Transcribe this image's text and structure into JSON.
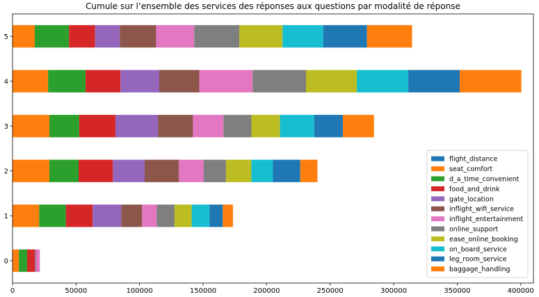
{
  "chart_data": {
    "type": "bar",
    "orientation": "horizontal",
    "stacked": true,
    "title": "Cumule sur l’ensemble des services des réponses aux questions par modalité de réponse",
    "xlabel": "",
    "ylabel": "",
    "xlim": [
      0,
      410000
    ],
    "xticks": [
      0,
      50000,
      100000,
      150000,
      200000,
      250000,
      300000,
      350000,
      400000
    ],
    "xtick_labels": [
      "0",
      "50000",
      "100000",
      "150000",
      "200000",
      "250000",
      "300000",
      "350000",
      "400000"
    ],
    "categories": [
      "0",
      "1",
      "2",
      "3",
      "4",
      "5"
    ],
    "legend_position": "lower right",
    "grid": false,
    "series": [
      {
        "name": "flight_distance",
        "color": "#1f77b4",
        "values": [
          0,
          0,
          0,
          0,
          0,
          0
        ]
      },
      {
        "name": "seat_comfort",
        "color": "#ff7f0e",
        "values": [
          5000,
          21000,
          29000,
          29000,
          28000,
          17500
        ]
      },
      {
        "name": "d_a_time_convenient",
        "color": "#2ca02c",
        "values": [
          6500,
          21000,
          23000,
          23500,
          29500,
          27000
        ]
      },
      {
        "name": "food_and_drink",
        "color": "#d62728",
        "values": [
          6000,
          21000,
          27000,
          28500,
          27500,
          20500
        ]
      },
      {
        "name": "gate_location",
        "color": "#9467bd",
        "values": [
          500,
          22500,
          25000,
          33500,
          30500,
          19500
        ]
      },
      {
        "name": "inflight_wifi_service",
        "color": "#8c564b",
        "values": [
          500,
          16500,
          27000,
          27500,
          31500,
          28500
        ]
      },
      {
        "name": "inflight_entertainment",
        "color": "#e377c2",
        "values": [
          3000,
          11500,
          19500,
          24000,
          42000,
          30000
        ]
      },
      {
        "name": "online_support",
        "color": "#7f7f7f",
        "values": [
          0,
          14000,
          17500,
          22000,
          42000,
          35500
        ]
      },
      {
        "name": "ease_online_booking",
        "color": "#bcbd22",
        "values": [
          0,
          13500,
          20000,
          22500,
          40000,
          34000
        ]
      },
      {
        "name": "on_board_service",
        "color": "#17becf",
        "values": [
          0,
          14000,
          17000,
          27000,
          40500,
          32000
        ]
      },
      {
        "name": "leg_room_service",
        "color": "#1f77b4",
        "values": [
          0,
          10500,
          21500,
          22500,
          40500,
          34500
        ]
      },
      {
        "name": "baggage_handling",
        "color": "#ff7f0e",
        "values": [
          0,
          8000,
          13500,
          24500,
          48500,
          35500
        ]
      }
    ]
  }
}
